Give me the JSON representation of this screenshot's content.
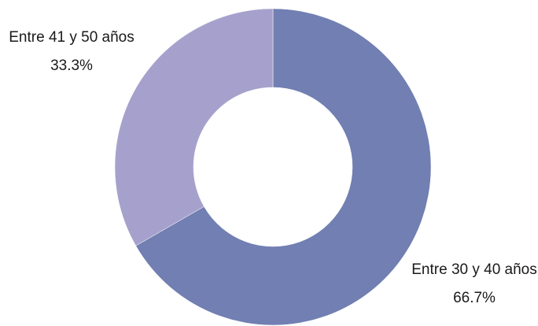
{
  "chart_data": {
    "type": "pie",
    "donut": true,
    "slices": [
      {
        "label": "Entre 30 y 40 años",
        "value": 66.7,
        "value_label": "66.7%",
        "color": "#717fb2"
      },
      {
        "label": "Entre 41 y 50 años",
        "value": 33.3,
        "value_label": "33.3%",
        "color": "#a6a1cc"
      }
    ]
  }
}
